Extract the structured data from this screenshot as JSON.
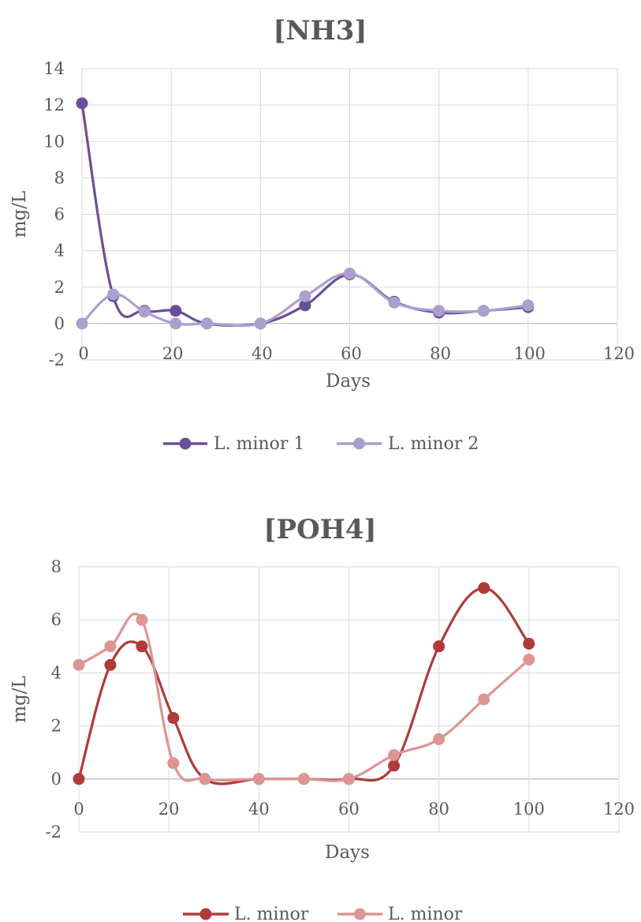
{
  "chart_data": [
    {
      "type": "line",
      "title": "[NH3]",
      "xlabel": "Days",
      "ylabel": "mg/L",
      "xlim": [
        0,
        120
      ],
      "ylim": [
        -2,
        14
      ],
      "xticks": [
        0,
        20,
        40,
        60,
        80,
        100,
        120
      ],
      "yticks": [
        -2,
        0,
        2,
        4,
        6,
        8,
        10,
        12,
        14
      ],
      "grid": "vertical and horizontal",
      "legend": "bottom",
      "smooth": true,
      "series": [
        {
          "name": "L. minor 1",
          "color": "#6b4e9a",
          "x": [
            0,
            7,
            14,
            21,
            28,
            40,
            50,
            60,
            70,
            80,
            90,
            100
          ],
          "y": [
            12.1,
            1.5,
            0.7,
            0.7,
            0.0,
            0.0,
            1.0,
            2.7,
            1.2,
            0.6,
            0.7,
            0.9
          ]
        },
        {
          "name": "L. minor 2",
          "color": "#ab9fcc",
          "x": [
            0,
            7,
            14,
            21,
            28,
            40,
            50,
            60,
            70,
            80,
            90,
            100
          ],
          "y": [
            0.0,
            1.6,
            0.65,
            0.0,
            0.0,
            0.0,
            1.5,
            2.75,
            1.15,
            0.7,
            0.7,
            1.0
          ]
        }
      ]
    },
    {
      "type": "line",
      "title": "[POH4]",
      "xlabel": "Days",
      "ylabel": "mg/L",
      "xlim": [
        0,
        120
      ],
      "ylim": [
        -2,
        8
      ],
      "xticks": [
        0,
        20,
        40,
        60,
        80,
        100,
        120
      ],
      "yticks": [
        -2,
        0,
        2,
        4,
        6,
        8
      ],
      "grid": "vertical and horizontal",
      "legend": "bottom",
      "smooth": true,
      "series": [
        {
          "name": "L. minor",
          "color": "#b03a3a",
          "x": [
            0,
            7,
            14,
            21,
            28,
            40,
            50,
            60,
            70,
            80,
            90,
            100
          ],
          "y": [
            0.0,
            4.3,
            5.0,
            2.3,
            0.0,
            0.0,
            0.0,
            0.0,
            0.5,
            5.0,
            7.2,
            5.1
          ]
        },
        {
          "name": "L. minor",
          "color": "#de9494",
          "x": [
            0,
            7,
            14,
            21,
            28,
            40,
            50,
            60,
            70,
            80,
            90,
            100
          ],
          "y": [
            4.3,
            5.0,
            6.0,
            0.6,
            0.0,
            0.0,
            0.0,
            0.0,
            0.9,
            1.5,
            3.0,
            4.5
          ]
        }
      ]
    }
  ]
}
